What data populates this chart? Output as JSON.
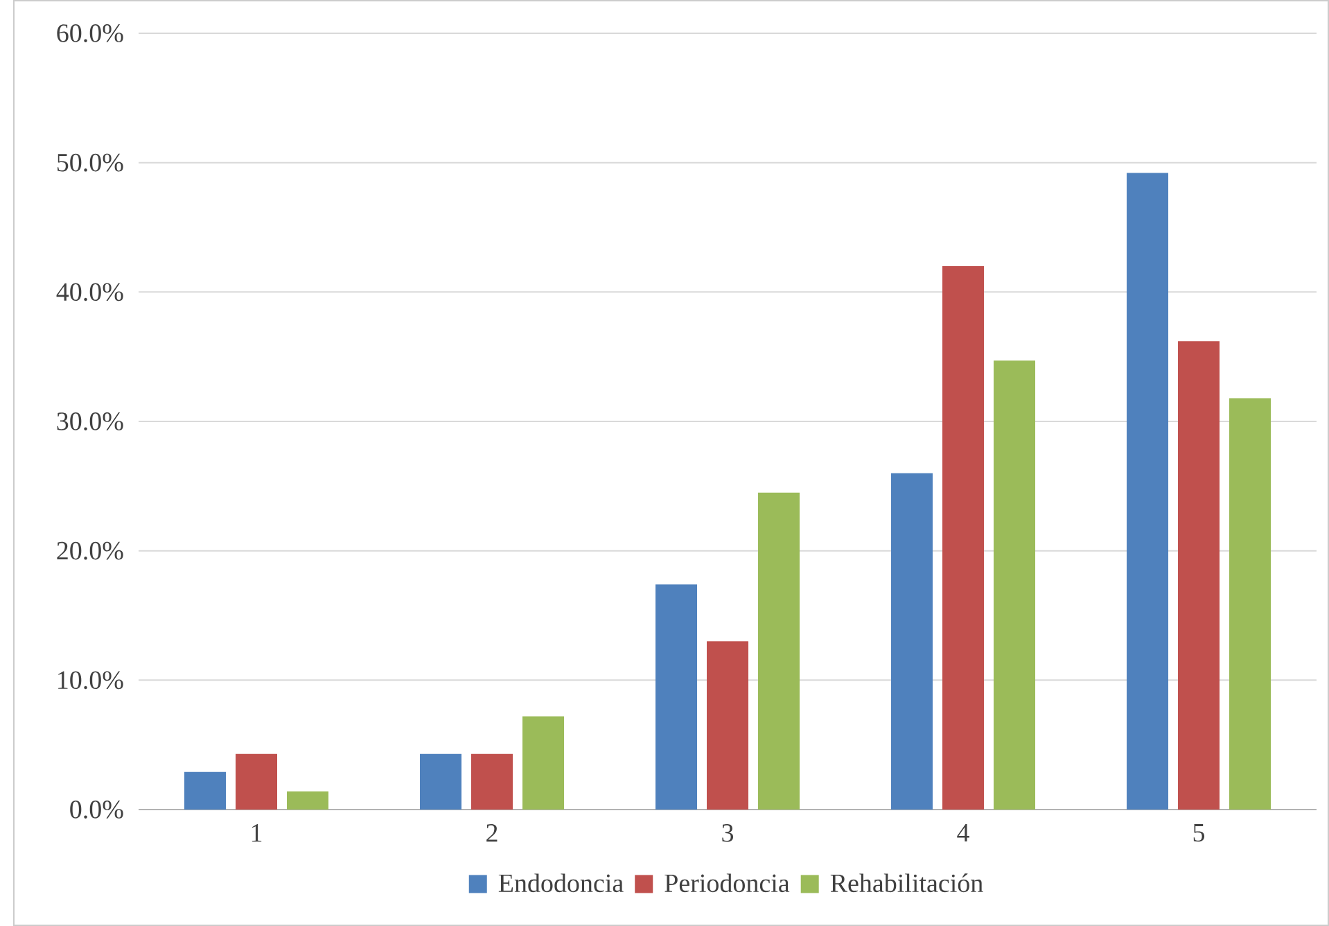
{
  "chart_data": {
    "type": "bar",
    "categories": [
      "1",
      "2",
      "3",
      "4",
      "5"
    ],
    "series": [
      {
        "name": "Endodoncia",
        "color": "#4f81bd",
        "values": [
          2.9,
          4.3,
          17.4,
          26.0,
          49.2
        ]
      },
      {
        "name": "Periodoncia",
        "color": "#c0504d",
        "values": [
          4.3,
          4.3,
          13.0,
          42.0,
          36.2
        ]
      },
      {
        "name": "Rehabilitación",
        "color": "#9bbb59",
        "values": [
          1.4,
          7.2,
          24.5,
          34.7,
          31.8
        ]
      }
    ],
    "ylim": [
      0,
      60
    ],
    "yticks": [
      {
        "value": 0,
        "label": "0.0%"
      },
      {
        "value": 10,
        "label": "10.0%"
      },
      {
        "value": 20,
        "label": "20.0%"
      },
      {
        "value": 30,
        "label": "30.0%"
      },
      {
        "value": 40,
        "label": "40.0%"
      },
      {
        "value": 50,
        "label": "50.0%"
      },
      {
        "value": 60,
        "label": "60.0%"
      }
    ],
    "grid": "y",
    "legend": "bottom"
  }
}
